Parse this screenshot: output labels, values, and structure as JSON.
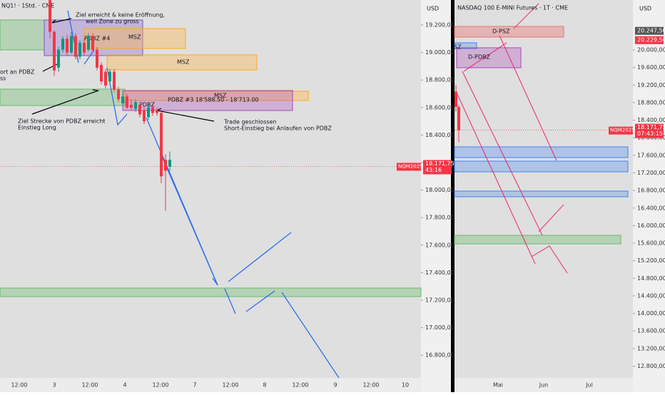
{
  "left_panel": {
    "title": "NQ1! · 1Std. · CME",
    "currency": "USD",
    "price_axis": [
      {
        "value": 19200,
        "label": "19.200,00"
      },
      {
        "value": 19000,
        "label": "19.000,00"
      },
      {
        "value": 18800,
        "label": "18.800,00"
      },
      {
        "value": 18600,
        "label": "18.600,00"
      },
      {
        "value": 18400,
        "label": "18.400,00"
      },
      {
        "value": 18200,
        "label": "18.200,00"
      },
      {
        "value": 18000,
        "label": "18.000,00"
      },
      {
        "value": 17800,
        "label": "17.800,00"
      },
      {
        "value": 17600,
        "label": "17.600,00"
      },
      {
        "value": 17400,
        "label": "17.400,00"
      },
      {
        "value": 17200,
        "label": "17.200,00"
      },
      {
        "value": 17000,
        "label": "17.000,00"
      },
      {
        "value": 16800,
        "label": "16.800,00"
      }
    ],
    "time_axis": [
      "12:00",
      "3",
      "12:00",
      "4",
      "12:00",
      "7",
      "12:00",
      "8",
      "12:00",
      "9",
      "12:00",
      "10"
    ],
    "badge": {
      "symbol": "NQM2025",
      "price": {
        "value": 18171.75,
        "label": "18.171,75"
      },
      "countdown": "43:16"
    },
    "candles": [
      [
        19380,
        19400,
        19100,
        19150
      ],
      [
        19150,
        19160,
        18830,
        18870
      ],
      [
        18890,
        19040,
        18860,
        19020
      ],
      [
        19020,
        19120,
        19000,
        19100
      ],
      [
        19100,
        19130,
        18980,
        19000
      ],
      [
        19000,
        19150,
        18990,
        19120
      ],
      [
        19120,
        19140,
        18950,
        18970
      ],
      [
        18970,
        19090,
        18950,
        19070
      ],
      [
        19070,
        19100,
        18980,
        19000
      ],
      [
        19020,
        19140,
        19010,
        19120
      ],
      [
        19120,
        19140,
        19000,
        19020
      ],
      [
        19020,
        19040,
        18870,
        18890
      ],
      [
        18910,
        18930,
        18770,
        18790
      ],
      [
        18860,
        18880,
        18740,
        18760
      ],
      [
        18790,
        18880,
        18770,
        18860
      ],
      [
        18860,
        18880,
        18710,
        18730
      ],
      [
        18730,
        18750,
        18640,
        18660
      ],
      [
        18630,
        18700,
        18610,
        18680
      ],
      [
        18680,
        18700,
        18590,
        18600
      ],
      [
        18620,
        18660,
        18580,
        18600
      ],
      [
        18590,
        18660,
        18570,
        18640
      ],
      [
        18620,
        18640,
        18530,
        18550
      ],
      [
        18580,
        18600,
        18480,
        18500
      ],
      [
        18530,
        18630,
        18510,
        18600
      ],
      [
        18600,
        18620,
        18540,
        18560
      ],
      [
        18580,
        18600,
        18540,
        18560
      ],
      [
        18560,
        18580,
        18050,
        18100
      ],
      [
        18220,
        18260,
        17850,
        18140
      ],
      [
        18170,
        18280,
        18140,
        18220
      ]
    ],
    "annotations": {
      "target_reached": "Ziel erreicht & keine Eröffnung,",
      "zone_too_big": "weil Zone zu gross",
      "pdbz4": "PDBZ #4",
      "msz1": "MSZ",
      "msz2": "MSZ",
      "short_at": "ort an PDBZ",
      "short_at2": "ss",
      "pdbz3": "PDBZ #3 18'588.50 - 18'713.00",
      "msz3": "MSZ",
      "pdbz": "PDBZ",
      "target_distance": "Ziel Strecke von PDBZ erreicht",
      "entry_long": "Einstieg Long",
      "trade_closed": "Trade geschlossen",
      "short_entry": "Short-Einstieg bei Anlaufen von PDBZ"
    }
  },
  "right_panel": {
    "title": "NASDAQ 100 E-MINI Futures · 1T · CME",
    "currency": "USD",
    "price_axis": [
      {
        "value": 20000,
        "label": "20.000,00"
      },
      {
        "value": 19600,
        "label": "19.600,00"
      },
      {
        "value": 19200,
        "label": "19.200,00"
      },
      {
        "value": 18800,
        "label": "18.800,00"
      },
      {
        "value": 18400,
        "label": "18.400,00"
      },
      {
        "value": 18000,
        "label": "18.000,00"
      },
      {
        "value": 17600,
        "label": "17.600,00"
      },
      {
        "value": 17200,
        "label": "17.200,00"
      },
      {
        "value": 16800,
        "label": "16.800,00"
      },
      {
        "value": 16400,
        "label": "16.400,00"
      },
      {
        "value": 16000,
        "label": "16.000,00"
      },
      {
        "value": 15600,
        "label": "15.600,00"
      },
      {
        "value": 15200,
        "label": "15.200,00"
      },
      {
        "value": 14800,
        "label": "14.800,00"
      },
      {
        "value": 14400,
        "label": "14.400,00"
      },
      {
        "value": 14000,
        "label": "14.000,00"
      },
      {
        "value": 13600,
        "label": "13.600,00"
      },
      {
        "value": 13200,
        "label": "13.200,00"
      },
      {
        "value": 12800,
        "label": "12.800,00"
      }
    ],
    "time_axis": [
      "Mai",
      "Jun",
      "Jul"
    ],
    "high_badges": [
      {
        "value": 20247.5,
        "label": "20.247,50"
      },
      {
        "value": 20229.5,
        "label": "20.229,50"
      }
    ],
    "badge": {
      "symbol": "NQM2025",
      "price": {
        "value": 18171.75,
        "label": "18.171,75"
      },
      "countdown": "07:43:15"
    },
    "candles": [
      [
        19050,
        19200,
        18600,
        18700
      ],
      [
        18700,
        18750,
        17900,
        18172
      ]
    ],
    "annotations": {
      "dpsz": "D-PSZ",
      "sz": "SZ",
      "dpdbz": "D-PDBZ"
    }
  }
}
